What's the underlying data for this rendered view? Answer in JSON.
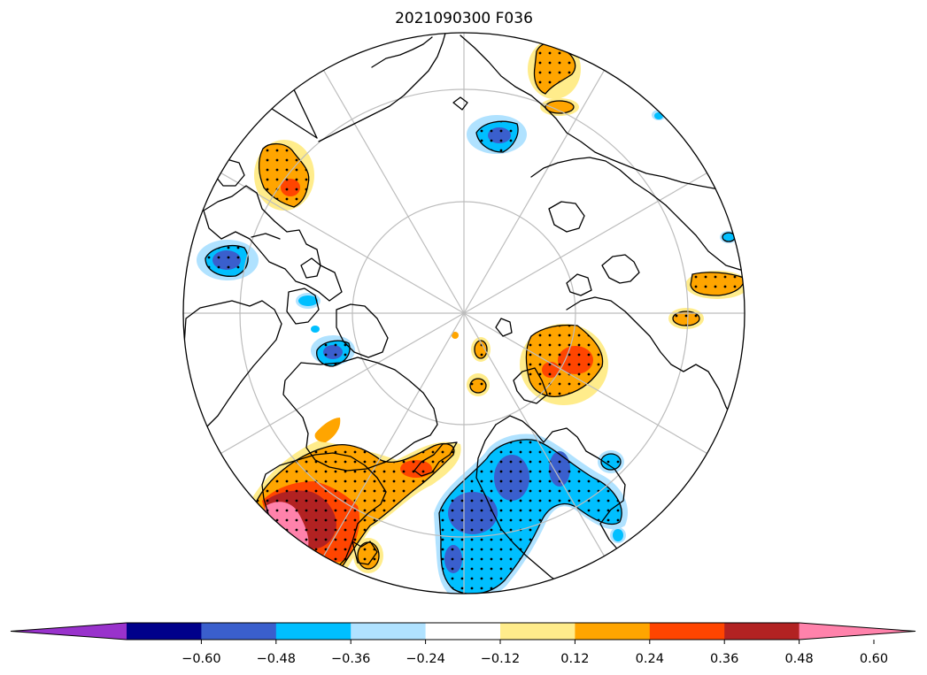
{
  "title": "2021090300 F036",
  "colorbar": {
    "colors": [
      "#9932cc",
      "#00008b",
      "#3a5fcd",
      "#00bfff",
      "#b0e2ff",
      "#ffffff",
      "#ffec8b",
      "#ffa500",
      "#ff4500",
      "#b22222",
      "#ff82ab"
    ],
    "ticks": [
      "−0.60",
      "−0.48",
      "−0.36",
      "−0.24",
      "−0.12",
      "0.12",
      "0.24",
      "0.36",
      "0.48",
      "0.60"
    ],
    "extend": "both"
  },
  "map": {
    "projection": "north-polar-stereographic",
    "latitude_circles": 3,
    "meridian_spacing_deg": 30,
    "stippling": "significant areas dotted",
    "colors": {
      "coastline": "#000000",
      "grid": "#bdbdbd"
    }
  }
}
